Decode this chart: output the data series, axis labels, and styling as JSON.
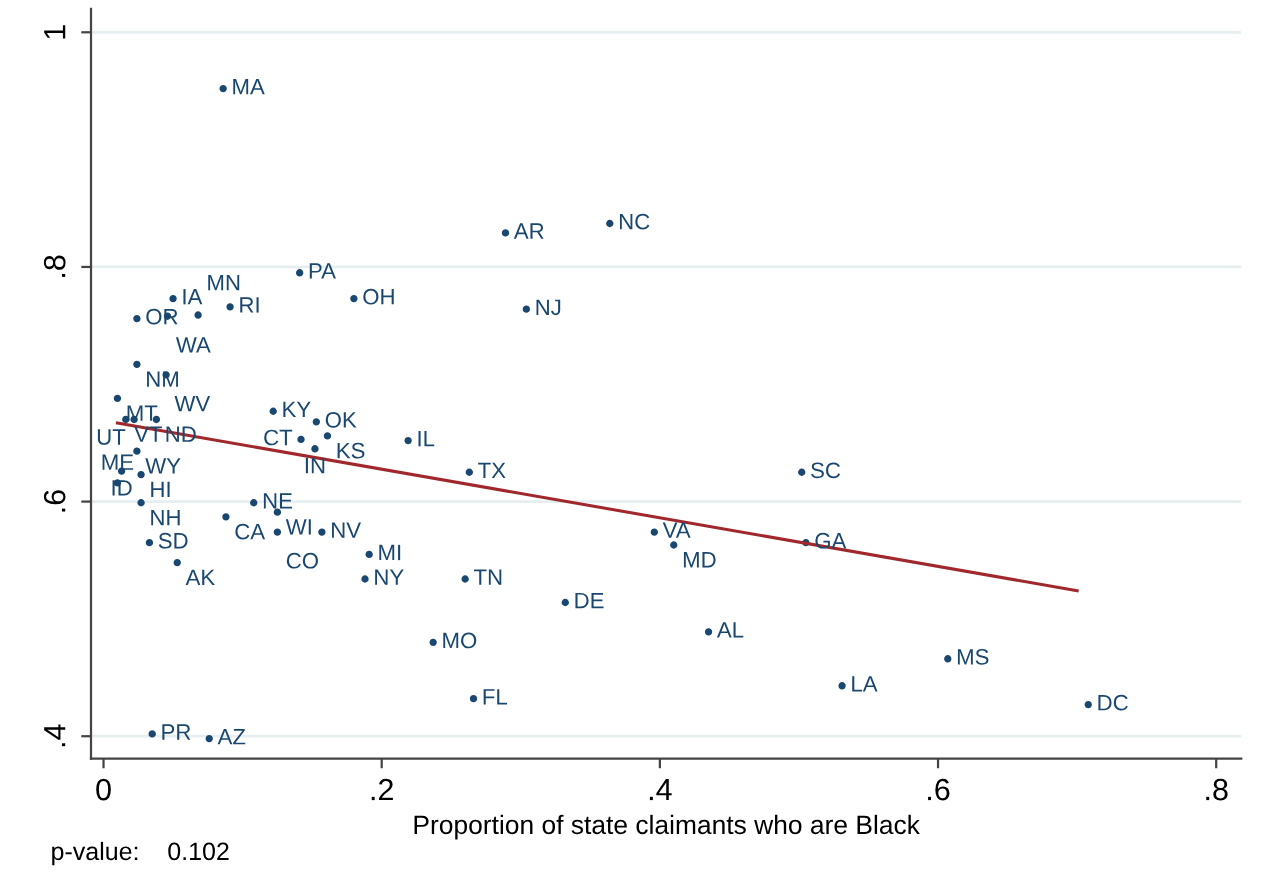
{
  "chart_data": {
    "type": "scatter",
    "xlabel": "Proportion of state claimants who are Black",
    "annotations": [
      "p-value:    0.102"
    ],
    "xlim": [
      -0.009,
      0.818
    ],
    "ylim": [
      0.381,
      1.02
    ],
    "xticks": [
      0,
      {
        "value": 0.2,
        "label": ".2"
      },
      {
        "value": 0.4,
        "label": ".4"
      },
      {
        "value": 0.6,
        "label": ".6"
      },
      {
        "value": 0.8,
        "label": ".8"
      }
    ],
    "yticks": [
      {
        "value": 0.4,
        "label": ".4"
      },
      {
        "value": 0.6,
        "label": ".6"
      },
      {
        "value": 0.8,
        "label": ".8"
      },
      1
    ],
    "grid": "y",
    "legend": false,
    "series": [
      {
        "color": "#1a476f",
        "marker": "circle",
        "x": [
          0.086,
          0.289,
          0.364,
          0.141,
          0.18,
          0.304,
          0.05,
          0.091,
          0.024,
          0.046,
          0.068,
          0.024,
          0.045,
          0.01,
          0.016,
          0.022,
          0.038,
          0.024,
          0.122,
          0.153,
          0.161,
          0.142,
          0.152,
          0.219,
          0.263,
          0.502,
          0.013,
          0.027,
          0.01,
          0.027,
          0.108,
          0.088,
          0.125,
          0.125,
          0.157,
          0.033,
          0.053,
          0.191,
          0.188,
          0.26,
          0.396,
          0.41,
          0.505,
          0.332,
          0.435,
          0.237,
          0.607,
          0.531,
          0.266,
          0.708,
          0.035,
          0.076
        ],
        "values": [
          0.952,
          0.829,
          0.837,
          0.795,
          0.773,
          0.764,
          0.773,
          0.766,
          0.756,
          0.758,
          0.759,
          0.717,
          0.708,
          0.688,
          0.67,
          0.67,
          0.67,
          0.643,
          0.677,
          0.668,
          0.656,
          0.653,
          0.645,
          0.652,
          0.625,
          0.625,
          0.626,
          0.623,
          0.616,
          0.599,
          0.599,
          0.587,
          0.591,
          0.574,
          0.574,
          0.565,
          0.548,
          0.555,
          0.534,
          0.534,
          0.574,
          0.563,
          0.565,
          0.514,
          0.489,
          0.48,
          0.466,
          0.443,
          0.432,
          0.427,
          0.402,
          0.398
        ],
        "value_labels": [
          "MA",
          "AR",
          "NC",
          "PA",
          "OH",
          "NJ",
          "IA",
          "RI",
          "OR",
          "WA",
          "MN",
          "NM",
          "WV",
          "MT",
          "VT",
          "UT",
          "ND",
          "WY",
          "KY",
          "OK",
          "KS",
          "CT",
          "IN",
          "IL",
          "TX",
          "SC",
          "ID",
          "HI",
          "ME",
          "NH",
          "NE",
          "CA",
          "WI",
          "CO",
          "NV",
          "SD",
          "AK",
          "MI",
          "NY",
          "TN",
          "VA",
          "MD",
          "GA",
          "DE",
          "AL",
          "MO",
          "MS",
          "LA",
          "FL",
          "DC",
          "PR",
          "AZ"
        ]
      },
      {
        "type": "line",
        "marker": "none",
        "color": "#a0282d",
        "x": [
          0.01,
          0.7
        ],
        "values": [
          0.667,
          0.524
        ]
      }
    ]
  }
}
